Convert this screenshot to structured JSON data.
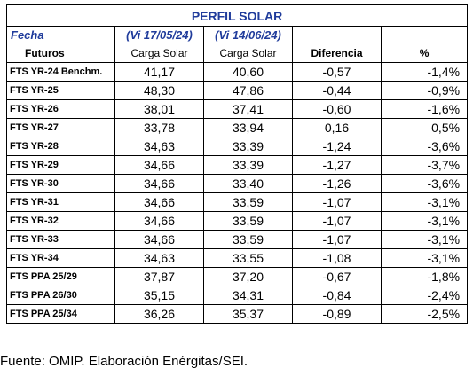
{
  "table": {
    "title": "PERFIL SOLAR",
    "header_row1": {
      "fecha": "Fecha",
      "date1": "(Vi 17/05/24)",
      "date2": "(Vi 14/06/24)"
    },
    "header_row2": {
      "futuros": "Futuros",
      "col1": "Carga Solar",
      "col2": "Carga Solar",
      "diff": "Diferencia",
      "pct": "%"
    },
    "rows": [
      {
        "name": "FTS YR-24 Benchm.",
        "v1": "41,17",
        "v2": "40,60",
        "diff": "-0,57",
        "pct": "-1,4%"
      },
      {
        "name": "FTS YR-25",
        "v1": "48,30",
        "v2": "47,86",
        "diff": "-0,44",
        "pct": "-0,9%"
      },
      {
        "name": "FTS YR-26",
        "v1": "38,01",
        "v2": "37,41",
        "diff": "-0,60",
        "pct": "-1,6%"
      },
      {
        "name": "FTS YR-27",
        "v1": "33,78",
        "v2": "33,94",
        "diff": "0,16",
        "pct": "0,5%"
      },
      {
        "name": "FTS YR-28",
        "v1": "34,63",
        "v2": "33,39",
        "diff": "-1,24",
        "pct": "-3,6%"
      },
      {
        "name": "FTS YR-29",
        "v1": "34,66",
        "v2": "33,39",
        "diff": "-1,27",
        "pct": "-3,7%"
      },
      {
        "name": "FTS YR-30",
        "v1": "34,66",
        "v2": "33,40",
        "diff": "-1,26",
        "pct": "-3,6%"
      },
      {
        "name": "FTS YR-31",
        "v1": "34,66",
        "v2": "33,59",
        "diff": "-1,07",
        "pct": "-3,1%"
      },
      {
        "name": "FTS YR-32",
        "v1": "34,66",
        "v2": "33,59",
        "diff": "-1,07",
        "pct": "-3,1%"
      },
      {
        "name": "FTS YR-33",
        "v1": "34,66",
        "v2": "33,59",
        "diff": "-1,07",
        "pct": "-3,1%"
      },
      {
        "name": "FTS YR-34",
        "v1": "34,63",
        "v2": "33,55",
        "diff": "-1,08",
        "pct": "-3,1%"
      },
      {
        "name": "FTS PPA 25/29",
        "v1": "37,87",
        "v2": "37,20",
        "diff": "-0,67",
        "pct": "-1,8%"
      },
      {
        "name": "FTS PPA 26/30",
        "v1": "35,15",
        "v2": "34,31",
        "diff": "-0,84",
        "pct": "-2,4%"
      },
      {
        "name": "FTS PPA 25/34",
        "v1": "36,26",
        "v2": "35,37",
        "diff": "-0,89",
        "pct": "-2,5%"
      }
    ]
  },
  "source": "Fuente: OMIP. Elaboración Enérgitas/SEI."
}
